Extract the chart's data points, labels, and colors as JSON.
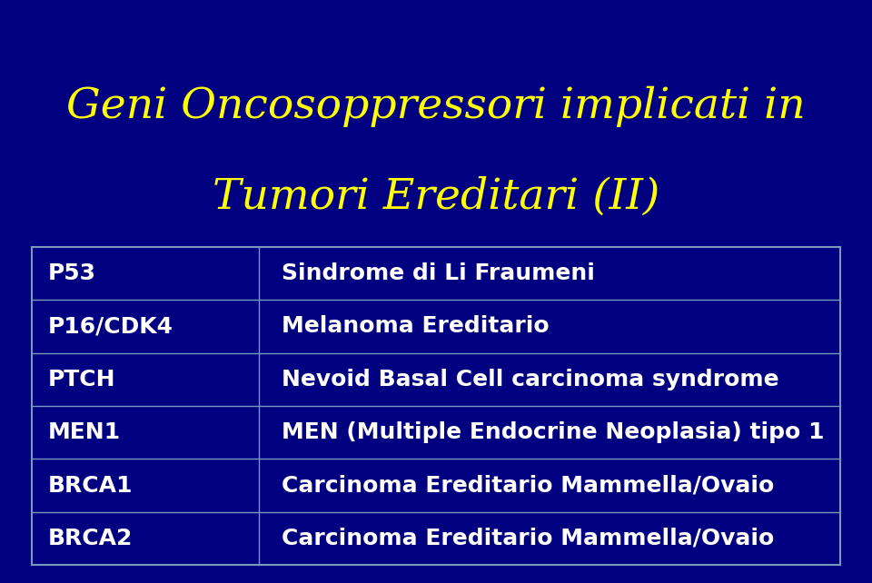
{
  "title_line1": "Geni Oncosoppressori implicati in",
  "title_line2": "Tumori Ereditari (II)",
  "title_color": "#FFFF00",
  "background_color": "#000080",
  "table_border_color": "#7799BB",
  "table_text_color": "#FFFFFF",
  "table_line_color": "#7799BB",
  "rows": [
    [
      "P53",
      "Sindrome di Li Fraumeni"
    ],
    [
      "P16/CDK4",
      "Melanoma Ereditario"
    ],
    [
      "PTCH",
      "Nevoid Basal Cell carcinoma syndrome"
    ],
    [
      "MEN1",
      "MEN (Multiple Endocrine Neoplasia) tipo 1"
    ],
    [
      "BRCA1",
      "Carcinoma Ereditario Mammella/Ovaio"
    ],
    [
      "BRCA2",
      "Carcinoma Ereditario Mammella/Ovaio"
    ]
  ],
  "title_fontsize": 34,
  "table_fontsize": 18,
  "figsize": [
    9.6,
    6.42
  ],
  "dpi": 100
}
